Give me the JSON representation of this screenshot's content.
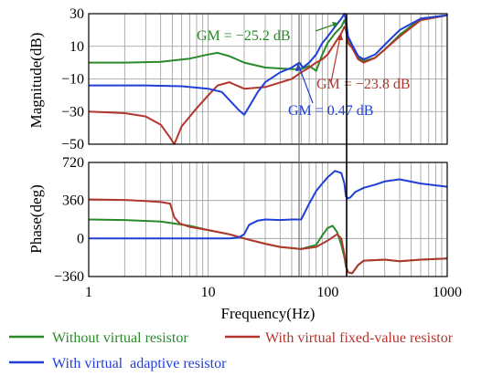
{
  "chart_data": [
    {
      "type": "line",
      "panel": "magnitude",
      "xlabel": "",
      "ylabel": "Magnitude(dB)",
      "xscale": "log",
      "xlim": [
        1,
        1000
      ],
      "ylim": [
        -50,
        30
      ],
      "yticks": [
        "30",
        "10",
        "-10",
        "-30",
        "-50"
      ],
      "grid": true,
      "series": [
        {
          "name": "Without virtual resistor",
          "color": "#2a8a2a",
          "x": [
            1,
            2,
            4,
            7,
            10,
            12,
            15,
            20,
            30,
            50,
            60,
            70,
            80,
            90,
            100,
            115,
            130,
            138,
            142,
            148,
            160,
            180,
            200,
            250,
            300,
            400,
            600,
            1000
          ],
          "y": [
            0,
            0,
            0.5,
            2.5,
            5,
            6,
            4,
            0,
            -3,
            -4,
            -4,
            -2,
            -5,
            5,
            12,
            18,
            22,
            26,
            23,
            15,
            10,
            3,
            1,
            3,
            8,
            17,
            27,
            29
          ]
        },
        {
          "name": "With virtual fixed-value resistor",
          "color": "#b3362c",
          "x": [
            1,
            2,
            3,
            4,
            4.8,
            5.2,
            6,
            8,
            10,
            12,
            15,
            20,
            30,
            50,
            60,
            70,
            80,
            90,
            100,
            115,
            130,
            138,
            142,
            148,
            160,
            180,
            200,
            250,
            300,
            400,
            600,
            1000
          ],
          "y": [
            -30,
            -31,
            -33,
            -38,
            -46,
            -50,
            -39,
            -28,
            -20,
            -14,
            -12,
            -16,
            -15,
            -10,
            -6,
            -3,
            0,
            2,
            5,
            12,
            18,
            22,
            20,
            12,
            9,
            2,
            0,
            3,
            8,
            16,
            26,
            29
          ]
        },
        {
          "name": "With virtual adaptive resistor",
          "color": "#1f3fd6",
          "x": [
            1,
            3,
            6,
            10,
            13,
            16,
            18,
            20,
            22,
            26,
            30,
            40,
            50,
            58,
            62,
            70,
            80,
            90,
            100,
            115,
            130,
            138,
            142,
            148,
            160,
            180,
            200,
            250,
            300,
            400,
            600,
            1000
          ],
          "y": [
            -14,
            -14,
            -14.5,
            -16,
            -18,
            -25,
            -29,
            -32,
            -27,
            -18,
            -12,
            -6,
            -3,
            0,
            -3,
            0,
            5,
            12,
            16,
            22,
            27,
            30,
            26,
            16,
            11,
            4,
            2,
            5,
            11,
            20,
            27,
            29
          ]
        }
      ],
      "annotations": [
        "GM = −25.2 dB",
        "GM = −23.8 dB",
        "GM = 0.47 dB"
      ]
    },
    {
      "type": "line",
      "panel": "phase",
      "xlabel": "Frequency(Hz)",
      "ylabel": "Phase(deg)",
      "xscale": "log",
      "xlim": [
        1,
        1000
      ],
      "ylim": [
        -360,
        720
      ],
      "yticks": [
        "720",
        "360",
        "0",
        "-360"
      ],
      "xticks": [
        "1",
        "10",
        "100",
        "1000"
      ],
      "grid": true,
      "series": [
        {
          "name": "Without virtual resistor",
          "color": "#2a8a2a",
          "x": [
            1,
            2,
            4,
            7,
            10,
            15,
            20,
            30,
            40,
            60,
            80,
            90,
            100,
            110,
            120,
            130,
            138,
            142,
            148,
            160,
            180,
            200,
            300,
            400,
            600,
            1000
          ],
          "y": [
            180,
            175,
            160,
            120,
            80,
            40,
            0,
            -50,
            -80,
            -100,
            -60,
            30,
            100,
            120,
            60,
            -60,
            -180,
            -260,
            -320,
            -330,
            -250,
            -210,
            -200,
            -215,
            -200,
            -190
          ]
        },
        {
          "name": "With virtual fixed-value resistor",
          "color": "#b3362c",
          "x": [
            1,
            2,
            3,
            4,
            4.8,
            5.2,
            5.8,
            7,
            10,
            15,
            20,
            30,
            40,
            60,
            80,
            100,
            120,
            130,
            138,
            142,
            148,
            160,
            180,
            200,
            300,
            400,
            600,
            1000
          ],
          "y": [
            370,
            365,
            355,
            345,
            330,
            200,
            140,
            110,
            80,
            40,
            0,
            -50,
            -80,
            -100,
            -80,
            -20,
            40,
            0,
            -150,
            -260,
            -320,
            -330,
            -250,
            -210,
            -200,
            -215,
            -200,
            -190
          ]
        },
        {
          "name": "With virtual adaptive resistor",
          "color": "#1f3fd6",
          "x": [
            1,
            5,
            10,
            15,
            18,
            20,
            22,
            26,
            30,
            40,
            50,
            60,
            70,
            80,
            90,
            100,
            115,
            130,
            138,
            142,
            148,
            155,
            170,
            200,
            250,
            300,
            400,
            600,
            1000
          ],
          "y": [
            0,
            0,
            0,
            0,
            10,
            40,
            130,
            170,
            180,
            175,
            180,
            180,
            330,
            450,
            520,
            580,
            640,
            620,
            520,
            400,
            380,
            390,
            440,
            480,
            510,
            540,
            560,
            520,
            490
          ]
        }
      ]
    }
  ],
  "legend": [
    {
      "label": "Without virtual resistor",
      "color": "#2a8a2a"
    },
    {
      "label": "With virtual fixed-value resistor",
      "color": "#b3362c"
    },
    {
      "label": "With virtual  adaptive resistor",
      "color": "#1f3fd6"
    }
  ]
}
